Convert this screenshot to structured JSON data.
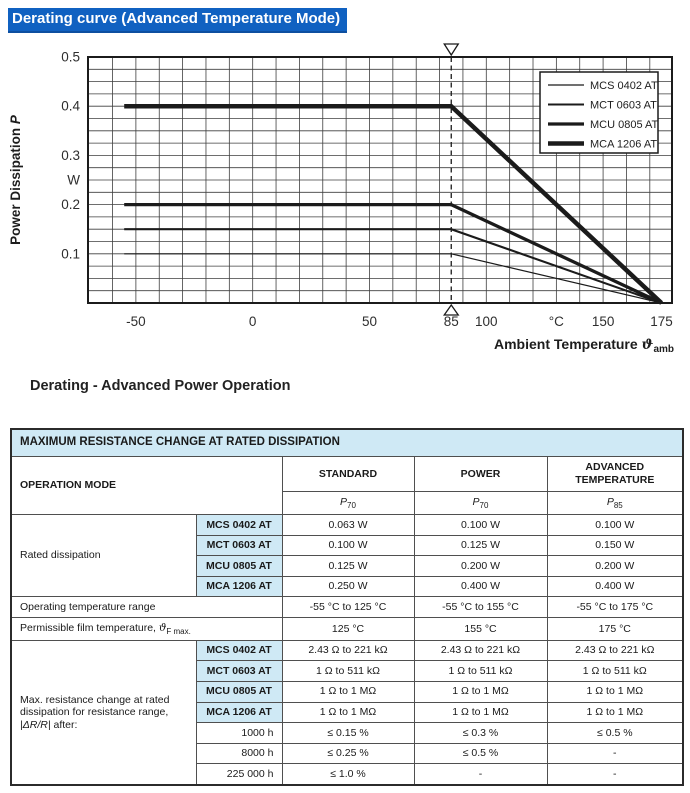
{
  "page_title": "Derating curve (Advanced Temperature Mode)",
  "chart_caption": "Derating - Advanced Power Operation",
  "colors": {
    "title_highlight": "#1061c1",
    "table_header_blue": "#cfe9f5",
    "ink": "#1b1b1b"
  },
  "chart_data": {
    "type": "line",
    "title": "",
    "ylabel_text": "Power Dissipation ",
    "ylabel_symbol": "P",
    "xlabel_text": "Ambient Temperature ",
    "xlabel_symbol": "ϑ",
    "xlabel_symbol_sub": "amb",
    "x_unit": "°C",
    "y_unit": "W",
    "xlim": [
      -70.5,
      179.5
    ],
    "ylim": [
      0,
      0.5
    ],
    "x_grid_step": 10,
    "y_grid_step": 0.025,
    "grid": true,
    "x_ticks": [
      {
        "label": "-50",
        "value": -50
      },
      {
        "label": "0",
        "value": 0
      },
      {
        "label": "50",
        "value": 50
      },
      {
        "label": "85",
        "value": 85
      },
      {
        "label": "100",
        "value": 100
      },
      {
        "label": "°C",
        "value": 130
      },
      {
        "label": "150",
        "value": 150
      },
      {
        "label": "175",
        "value": 175
      }
    ],
    "y_ticks": [
      {
        "label": "0.5",
        "value": 0.5
      },
      {
        "label": "0.4",
        "value": 0.4
      },
      {
        "label": "0.3",
        "value": 0.3
      },
      {
        "label": "W",
        "value": 0.25
      },
      {
        "label": "0.2",
        "value": 0.2
      },
      {
        "label": "0.1",
        "value": 0.1
      }
    ],
    "dashed_marker_x": 85,
    "zero_power_x": 175,
    "legend_position": "top-right",
    "series": [
      {
        "name": "MCS 0402 AT",
        "rated_power_w": 0.1,
        "x": [
          -55,
          85,
          175
        ],
        "y": [
          0.1,
          0.1,
          0
        ],
        "line_width": 1.2
      },
      {
        "name": "MCT 0603 AT",
        "rated_power_w": 0.15,
        "x": [
          -55,
          85,
          175
        ],
        "y": [
          0.15,
          0.15,
          0
        ],
        "line_width": 2.1
      },
      {
        "name": "MCU 0805 AT",
        "rated_power_w": 0.2,
        "x": [
          -55,
          85,
          175
        ],
        "y": [
          0.2,
          0.2,
          0
        ],
        "line_width": 3.3
      },
      {
        "name": "MCA 1206 AT",
        "rated_power_w": 0.4,
        "x": [
          -55,
          85,
          175
        ],
        "y": [
          0.4,
          0.4,
          0
        ],
        "line_width": 4.5
      }
    ]
  },
  "table": {
    "title": "MAXIMUM RESISTANCE CHANGE AT RATED DISSIPATION",
    "col_headers": {
      "operation_mode": "OPERATION MODE",
      "standard": "STANDARD",
      "power": "POWER",
      "advanced": "ADVANCED TEMPERATURE"
    },
    "p_labels": [
      {
        "base": "P",
        "sub": "70"
      },
      {
        "base": "P",
        "sub": "70"
      },
      {
        "base": "P",
        "sub": "85"
      }
    ],
    "rated": {
      "label": "Rated dissipation",
      "rows": [
        {
          "model": "MCS 0402 AT",
          "values": [
            "0.063 W",
            "0.100 W",
            "0.100 W"
          ]
        },
        {
          "model": "MCT 0603 AT",
          "values": [
            "0.100 W",
            "0.125 W",
            "0.150 W"
          ]
        },
        {
          "model": "MCU 0805 AT",
          "values": [
            "0.125 W",
            "0.200 W",
            "0.200 W"
          ]
        },
        {
          "model": "MCA 1206 AT",
          "values": [
            "0.250 W",
            "0.400 W",
            "0.400 W"
          ]
        }
      ]
    },
    "operating": {
      "label": "Operating temperature range",
      "values": [
        "-55 °C to 125 °C",
        "-55 °C to 155 °C",
        "-55 °C to 175 °C"
      ]
    },
    "film": {
      "label": "Permissible film temperature, ",
      "symbol": "ϑ",
      "symbol_sub": "F max.",
      "values": [
        "125 °C",
        "155 °C",
        "175 °C"
      ]
    },
    "resistance": {
      "label_line1": "Max. resistance change at rated",
      "label_line2": "dissipation for resistance range,",
      "label_expr": "|ΔR/R|",
      "label_after": " after:",
      "rows": [
        {
          "model": "MCS 0402 AT",
          "values": [
            "2.43 Ω to 221 kΩ",
            "2.43 Ω to 221 kΩ",
            "2.43 Ω to 221 kΩ"
          ]
        },
        {
          "model": "MCT 0603 AT",
          "values": [
            "1 Ω to 511 kΩ",
            "1 Ω to 511 kΩ",
            "1 Ω to 511 kΩ"
          ]
        },
        {
          "model": "MCU 0805 AT",
          "values": [
            "1 Ω to 1 MΩ",
            "1 Ω to 1 MΩ",
            "1 Ω to 1 MΩ"
          ]
        },
        {
          "model": "MCA 1206 AT",
          "values": [
            "1 Ω to 1 MΩ",
            "1 Ω to 1 MΩ",
            "1 Ω to 1 MΩ"
          ]
        }
      ],
      "hours": [
        {
          "label": "1000 h",
          "values": [
            "≤ 0.15 %",
            "≤ 0.3 %",
            "≤ 0.5 %"
          ]
        },
        {
          "label": "8000 h",
          "values": [
            "≤ 0.25 %",
            "≤ 0.5 %",
            "-"
          ]
        },
        {
          "label": "225 000 h",
          "values": [
            "≤ 1.0 %",
            "-",
            "-"
          ]
        }
      ]
    }
  }
}
